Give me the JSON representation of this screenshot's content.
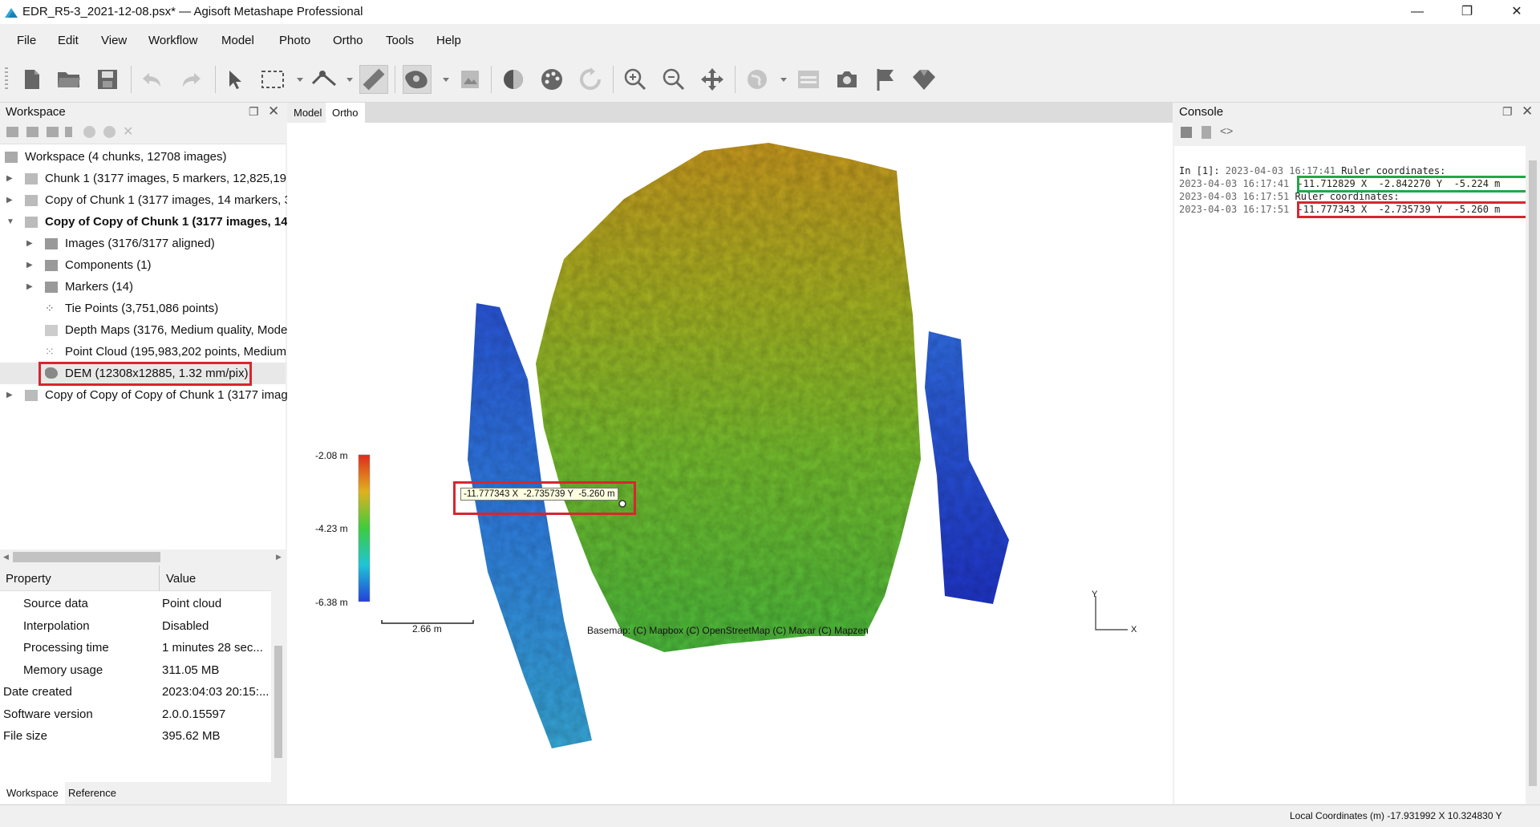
{
  "window": {
    "title": "EDR_R5-3_2021-12-08.psx* — Agisoft Metashape Professional",
    "minimize": "—",
    "maximize": "❐",
    "close": "✕"
  },
  "menu": [
    "File",
    "Edit",
    "View",
    "Workflow",
    "Model",
    "Photo",
    "Ortho",
    "Tools",
    "Help"
  ],
  "toolbar": {
    "icons": [
      "new-document-icon",
      "open-folder-icon",
      "save-icon",
      "undo-icon",
      "redo-icon",
      "pointer-icon",
      "rectangle-selection-icon",
      "ruler-tool-icon",
      "ruler-icon",
      "dem-shading-icon",
      "orthophoto-icon",
      "contrast-icon",
      "palette-icon",
      "refresh-icon",
      "zoom-in-icon",
      "zoom-out-icon",
      "move-icon",
      "globe-icon",
      "display-settings-icon",
      "camera-icon",
      "flag-icon",
      "marker-icon"
    ]
  },
  "workspace": {
    "title": "Workspace",
    "root": "Workspace (4 chunks, 12708 images)",
    "items": [
      {
        "label": "Chunk 1 (3177 images, 5 markers, 12,825,191",
        "level": 1,
        "bold": false
      },
      {
        "label": "Copy of Chunk 1 (3177 images, 14 markers, 3",
        "level": 1,
        "bold": false
      },
      {
        "label": "Copy of Copy of Chunk 1 (3177 images, 14",
        "level": 1,
        "bold": true
      },
      {
        "label": "Images (3176/3177 aligned)",
        "level": 2,
        "bold": false
      },
      {
        "label": "Components (1)",
        "level": 2,
        "bold": false
      },
      {
        "label": "Markers (14)",
        "level": 2,
        "bold": false
      },
      {
        "label": "Tie Points (3,751,086 points)",
        "level": 2,
        "bold": false
      },
      {
        "label": "Depth Maps (3176, Medium quality, Mode",
        "level": 2,
        "bold": false
      },
      {
        "label": "Point Cloud (195,983,202 points, Medium",
        "level": 2,
        "bold": false
      },
      {
        "label": "DEM (12308x12885, 1.32 mm/pix)",
        "level": 2,
        "bold": false
      },
      {
        "label": "Copy of Copy of Copy of Chunk 1 (3177 imag",
        "level": 1,
        "bold": false
      }
    ]
  },
  "properties": {
    "col_property": "Property",
    "col_value": "Value",
    "rows": [
      {
        "name": "Source data",
        "value": "Point cloud",
        "indent": true
      },
      {
        "name": "Interpolation",
        "value": "Disabled",
        "indent": true
      },
      {
        "name": "Processing time",
        "value": "1 minutes 28 sec...",
        "indent": true
      },
      {
        "name": "Memory usage",
        "value": "311.05 MB",
        "indent": true
      },
      {
        "name": "Date created",
        "value": "2023:04:03 20:15:...",
        "indent": false
      },
      {
        "name": "Software version",
        "value": "2.0.0.15597",
        "indent": false
      },
      {
        "name": "File size",
        "value": "395.62 MB",
        "indent": false
      }
    ]
  },
  "bottom_tabs": [
    "Workspace",
    "Reference"
  ],
  "view": {
    "tabs": [
      "Model",
      "Ortho"
    ],
    "active_tab": "Ortho",
    "legend": {
      "max": "-2.08 m",
      "mid": "-4.23 m",
      "min": "-6.38 m"
    },
    "scale_bar": "2.66 m",
    "basemap": "Basemap: (C) Mapbox (C) OpenStreetMap (C) Maxar (C) Mapzen",
    "axis_y": "Y",
    "axis_x": "X",
    "ruler_tooltip": "-11.777343 X  -2.735739 Y  -5.260 m"
  },
  "console": {
    "title": "Console",
    "lines": [
      {
        "prefix": "In [1]: ",
        "ts": "2023-04-03 16:17:41",
        "text": " Ruler coordinates:"
      },
      {
        "prefix": "",
        "ts": "2023-04-03 16:17:41",
        "text": "-11.712829 X  -2.842270 Y  -5.224 m"
      },
      {
        "prefix": "",
        "ts": "2023-04-03 16:17:51",
        "text": " Ruler coordinates:"
      },
      {
        "prefix": "",
        "ts": "2023-04-03 16:17:51",
        "text": "-11.777343 X  -2.735739 Y  -5.260 m"
      }
    ]
  },
  "status": {
    "coordinates": "Local Coordinates (m)  -17.931992 X  10.324830 Y"
  },
  "colors": {
    "highlight_red": "#d8262f",
    "highlight_green": "#22a845",
    "legend_top": "#e02a1c",
    "legend_mid": "#3dcc3d",
    "legend_bottom": "#2440d8"
  }
}
